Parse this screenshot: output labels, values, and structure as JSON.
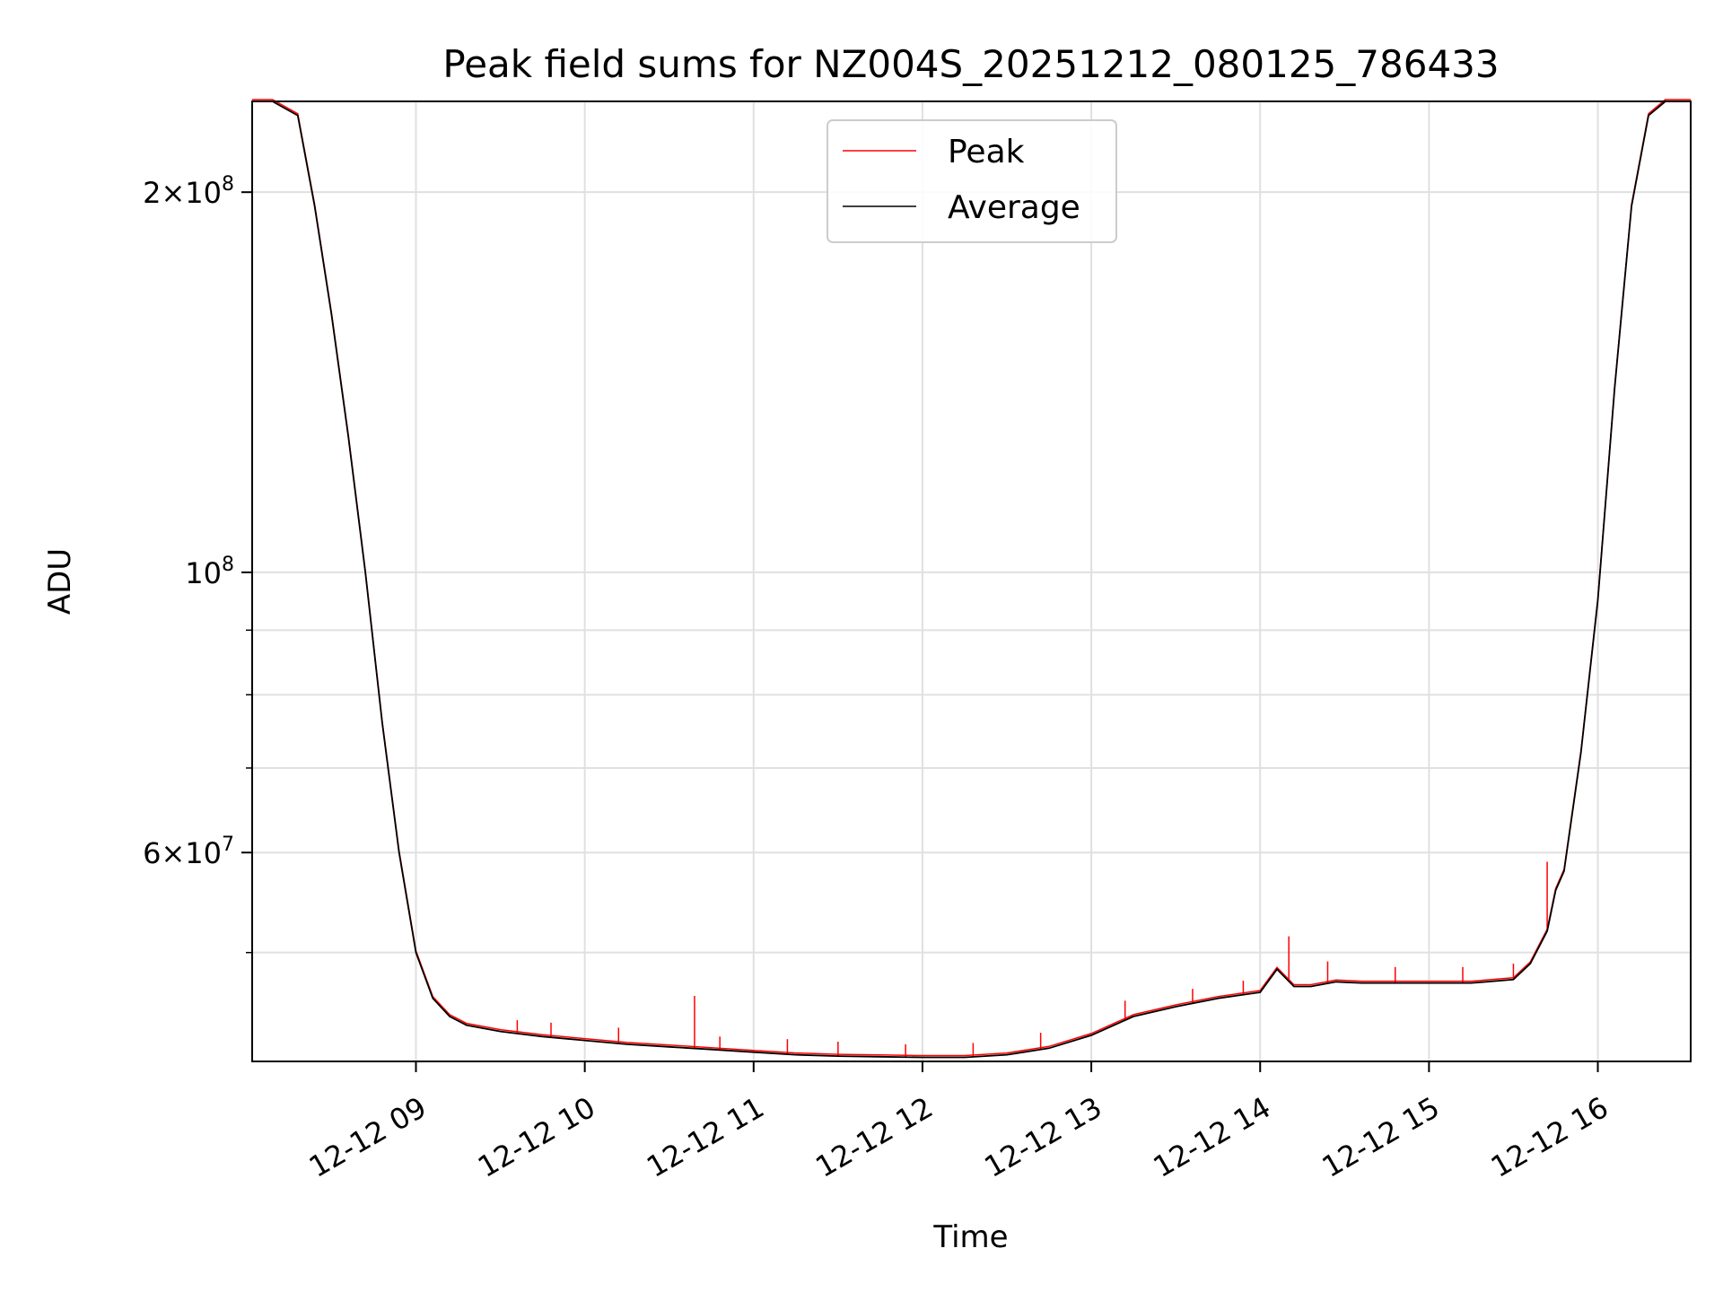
{
  "chart_data": {
    "type": "line",
    "title": "Peak field sums for NZ004S_20251212_080125_786433",
    "xlabel": "Time",
    "ylabel": "ADU",
    "yscale": "log",
    "ylim": [
      41000000,
      236000000
    ],
    "xlim_hours": [
      8.03,
      16.55
    ],
    "x_ticks": [
      {
        "hour": 9,
        "label": "12-12 09"
      },
      {
        "hour": 10,
        "label": "12-12 10"
      },
      {
        "hour": 11,
        "label": "12-12 11"
      },
      {
        "hour": 12,
        "label": "12-12 12"
      },
      {
        "hour": 13,
        "label": "12-12 13"
      },
      {
        "hour": 14,
        "label": "12-12 14"
      },
      {
        "hour": 15,
        "label": "12-12 15"
      },
      {
        "hour": 16,
        "label": "12-12 16"
      }
    ],
    "y_major_ticks": [
      {
        "value": 60000000,
        "mantissa": "6",
        "exp": "7",
        "show_mantissa": true
      },
      {
        "value": 100000000,
        "mantissa": "",
        "exp": "8",
        "show_mantissa": false
      },
      {
        "value": 200000000,
        "mantissa": "2",
        "exp": "8",
        "show_mantissa": true
      }
    ],
    "y_minor_ticks": [
      50000000,
      70000000,
      80000000,
      90000000
    ],
    "grid": true,
    "legend": {
      "position": "top-center",
      "entries": [
        {
          "label": "Peak",
          "color": "#ff0000"
        },
        {
          "label": "Average",
          "color": "#000000"
        }
      ]
    },
    "series": [
      {
        "name": "Average",
        "color": "#000000",
        "x_hours": [
          8.03,
          8.15,
          8.3,
          8.4,
          8.5,
          8.6,
          8.7,
          8.8,
          8.9,
          9.0,
          9.1,
          9.2,
          9.3,
          9.5,
          9.75,
          10.0,
          10.25,
          10.5,
          10.75,
          11.0,
          11.25,
          11.5,
          11.75,
          12.0,
          12.25,
          12.5,
          12.75,
          13.0,
          13.25,
          13.5,
          13.75,
          14.0,
          14.1,
          14.2,
          14.3,
          14.45,
          14.6,
          14.75,
          15.0,
          15.25,
          15.5,
          15.6,
          15.7,
          15.75,
          15.8,
          15.9,
          16.0,
          16.1,
          16.2,
          16.3,
          16.4,
          16.55
        ],
        "values": [
          236000000,
          236000000,
          230000000,
          195000000,
          160000000,
          128000000,
          100000000,
          76000000,
          60000000,
          50000000,
          46000000,
          44500000,
          43800000,
          43300000,
          42900000,
          42600000,
          42300000,
          42100000,
          41900000,
          41700000,
          41500000,
          41400000,
          41350000,
          41300000,
          41300000,
          41500000,
          42000000,
          43000000,
          44500000,
          45300000,
          46000000,
          46500000,
          48500000,
          47000000,
          47000000,
          47400000,
          47300000,
          47300000,
          47300000,
          47300000,
          47600000,
          49000000,
          52000000,
          56000000,
          58000000,
          72000000,
          95000000,
          140000000,
          195000000,
          230000000,
          236000000,
          236000000
        ]
      },
      {
        "name": "Peak",
        "color": "#ff0000",
        "spikes": [
          {
            "hour": 9.6,
            "value": 44200000
          },
          {
            "hour": 9.8,
            "value": 44000000
          },
          {
            "hour": 10.2,
            "value": 43600000
          },
          {
            "hour": 10.65,
            "value": 46200000
          },
          {
            "hour": 10.8,
            "value": 42900000
          },
          {
            "hour": 11.2,
            "value": 42700000
          },
          {
            "hour": 11.5,
            "value": 42500000
          },
          {
            "hour": 11.9,
            "value": 42300000
          },
          {
            "hour": 12.3,
            "value": 42400000
          },
          {
            "hour": 12.7,
            "value": 43200000
          },
          {
            "hour": 13.2,
            "value": 45800000
          },
          {
            "hour": 13.6,
            "value": 46800000
          },
          {
            "hour": 13.9,
            "value": 47500000
          },
          {
            "hour": 14.17,
            "value": 51500000
          },
          {
            "hour": 14.4,
            "value": 49200000
          },
          {
            "hour": 14.8,
            "value": 48700000
          },
          {
            "hour": 15.2,
            "value": 48700000
          },
          {
            "hour": 15.5,
            "value": 49000000
          },
          {
            "hour": 15.7,
            "value": 59000000
          }
        ]
      }
    ]
  }
}
